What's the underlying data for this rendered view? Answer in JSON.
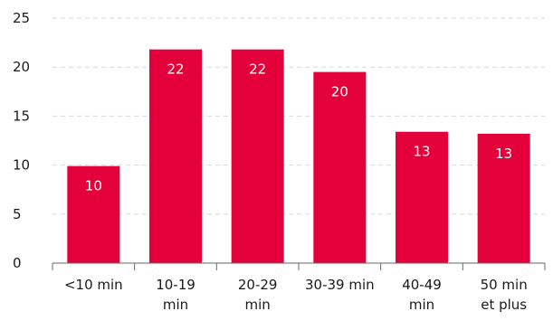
{
  "chart_data": {
    "type": "bar",
    "categories": [
      [
        "<10 min"
      ],
      [
        "10-19",
        "min"
      ],
      [
        "20-29",
        "min"
      ],
      [
        "30-39 min"
      ],
      [
        "40-49",
        "min"
      ],
      [
        "50 min",
        "et plus"
      ]
    ],
    "values": [
      9.9,
      21.8,
      21.8,
      19.5,
      13.4,
      13.2
    ],
    "data_labels": [
      "10",
      "22",
      "22",
      "20",
      "13",
      "13"
    ],
    "yticks": [
      "0",
      "5",
      "10",
      "15",
      "20",
      "25"
    ],
    "ylim": [
      0,
      25
    ],
    "grid": true,
    "colors": {
      "bar": "#e4003b",
      "grid": "#d9d9d9",
      "axis": "#666666",
      "text": "#1a1a1a"
    }
  }
}
